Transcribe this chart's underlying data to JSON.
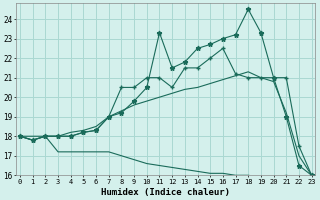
{
  "title": "",
  "xlabel": "Humidex (Indice chaleur)",
  "bg_color": "#d4f0ec",
  "grid_color": "#aad8d2",
  "line_color": "#1a6b5a",
  "x": [
    0,
    1,
    2,
    3,
    4,
    5,
    6,
    7,
    8,
    9,
    10,
    11,
    12,
    13,
    14,
    15,
    16,
    17,
    18,
    19,
    20,
    21,
    22,
    23
  ],
  "line1_star": [
    18.0,
    17.8,
    18.0,
    18.0,
    18.0,
    18.2,
    18.3,
    19.0,
    19.2,
    19.8,
    20.5,
    23.3,
    21.5,
    21.8,
    22.5,
    22.7,
    23.0,
    23.2,
    24.5,
    23.3,
    21.0,
    19.0,
    16.5,
    16.0
  ],
  "line2_plus": [
    18.0,
    17.8,
    18.0,
    18.0,
    18.0,
    18.2,
    18.3,
    19.0,
    20.5,
    20.5,
    21.0,
    21.0,
    20.5,
    21.5,
    21.5,
    22.0,
    22.5,
    21.2,
    21.0,
    21.0,
    21.0,
    21.0,
    17.5,
    16.0
  ],
  "line3_plain": [
    18.0,
    18.0,
    18.0,
    18.0,
    18.2,
    18.3,
    18.5,
    19.0,
    19.3,
    19.6,
    19.8,
    20.0,
    20.2,
    20.4,
    20.5,
    20.7,
    20.9,
    21.1,
    21.3,
    21.0,
    20.8,
    19.2,
    17.0,
    16.0
  ],
  "line4_plain": [
    18.0,
    17.8,
    18.0,
    17.2,
    17.2,
    17.2,
    17.2,
    17.2,
    17.0,
    16.8,
    16.6,
    16.5,
    16.4,
    16.3,
    16.2,
    16.1,
    16.1,
    16.0,
    16.0,
    15.9,
    15.9,
    16.0,
    15.9,
    15.9
  ],
  "ylim": [
    16,
    24.8
  ],
  "xlim": [
    -0.3,
    23.3
  ],
  "yticks": [
    16,
    17,
    18,
    19,
    20,
    21,
    22,
    23,
    24
  ],
  "xticks": [
    0,
    1,
    2,
    3,
    4,
    5,
    6,
    7,
    8,
    9,
    10,
    11,
    12,
    13,
    14,
    15,
    16,
    17,
    18,
    19,
    20,
    21,
    22,
    23
  ]
}
